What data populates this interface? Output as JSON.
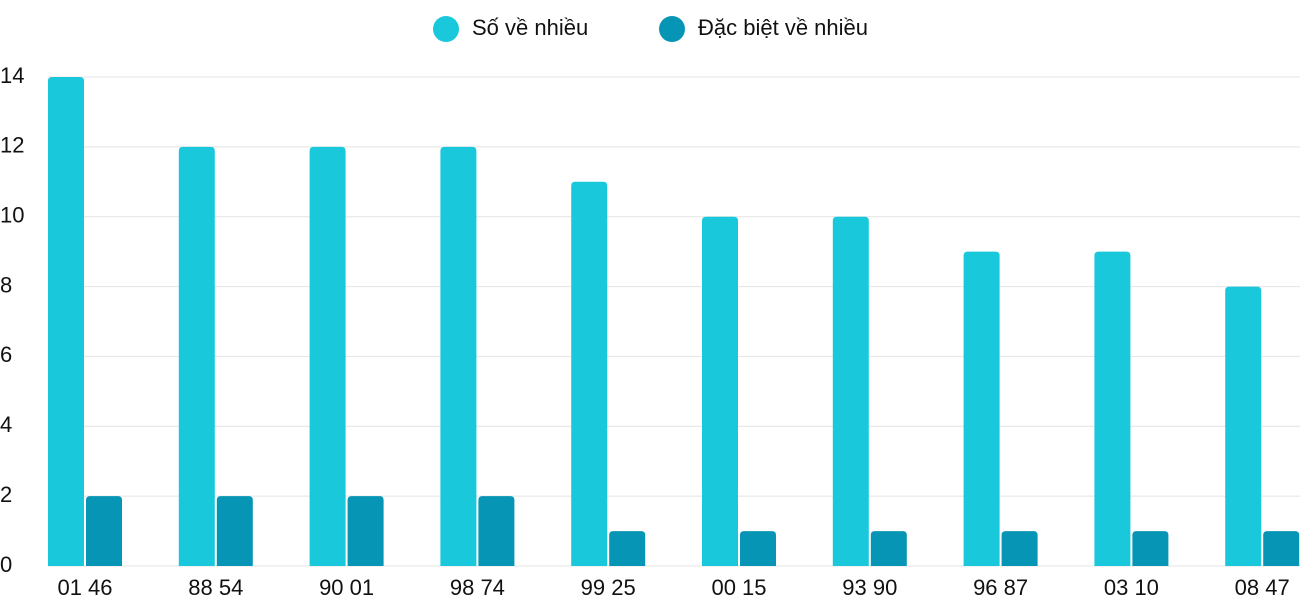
{
  "chart_data": {
    "type": "bar",
    "categories": [
      "01 46",
      "88 54",
      "90 01",
      "98 74",
      "99 25",
      "00 15",
      "93 90",
      "96 87",
      "03 10",
      "08 47"
    ],
    "series": [
      {
        "name": "Số về nhiều",
        "color": "#1ac8db",
        "values": [
          14,
          12,
          12,
          12,
          11,
          10,
          10,
          9,
          9,
          8
        ]
      },
      {
        "name": "Đặc biệt về nhiều",
        "color": "#0695b5",
        "values": [
          2,
          2,
          2,
          2,
          1,
          1,
          1,
          1,
          1,
          1
        ]
      }
    ],
    "ylim": [
      0,
      14
    ],
    "yticks": [
      0,
      2,
      4,
      6,
      8,
      10,
      12,
      14
    ],
    "grid": true,
    "legend": "top"
  }
}
